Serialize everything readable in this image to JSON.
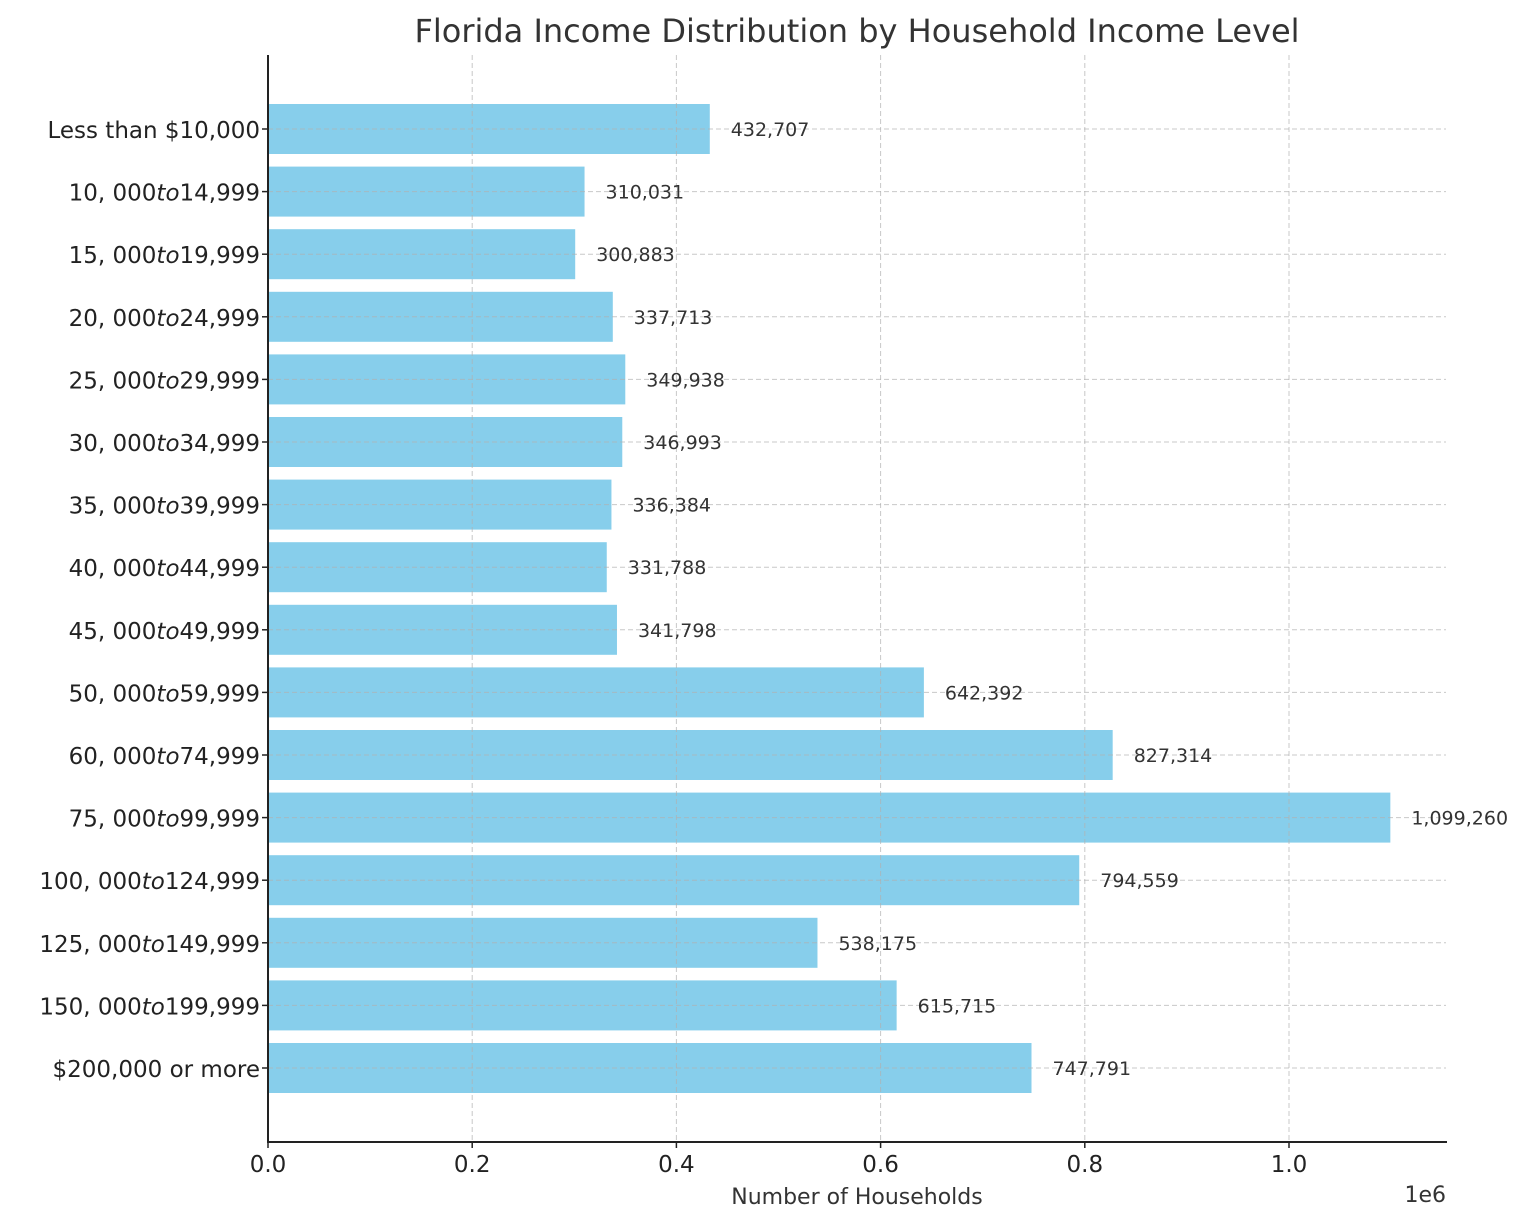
{
  "chart_data": {
    "type": "bar",
    "orientation": "horizontal",
    "title": "Florida Income Distribution by Household Income Level",
    "xlabel": "Number of Households",
    "ylabel": "",
    "x_offset_label": "1e6",
    "xlim": [
      0,
      1155000
    ],
    "xticks": [
      0,
      200000,
      400000,
      600000,
      800000,
      1000000
    ],
    "xtick_labels": [
      "0.0",
      "0.2",
      "0.4",
      "0.6",
      "0.8",
      "1.0"
    ],
    "grid": true,
    "bar_color": "#87ceeb",
    "categories": [
      "Less than $10,000",
      "10, 000to14,999",
      "15, 000to19,999",
      "20, 000to24,999",
      "25, 000to29,999",
      "30, 000to34,999",
      "35, 000to39,999",
      "40, 000to44,999",
      "45, 000to49,999",
      "50, 000to59,999",
      "60, 000to74,999",
      "75, 000to99,999",
      "100, 000to124,999",
      "125, 000to149,999",
      "150, 000to199,999",
      "$200,000 or more"
    ],
    "values": [
      432707,
      310031,
      300883,
      337713,
      349938,
      346993,
      336384,
      331788,
      341798,
      642392,
      827314,
      1099260,
      794559,
      538175,
      615715,
      747791
    ],
    "data_labels": [
      "432,707",
      "310,031",
      "300,883",
      "337,713",
      "349,938",
      "346,993",
      "336,384",
      "331,788",
      "341,798",
      "642,392",
      "827,314",
      "1,099,260",
      "794,559",
      "538,175",
      "615,715",
      "747,791"
    ]
  }
}
